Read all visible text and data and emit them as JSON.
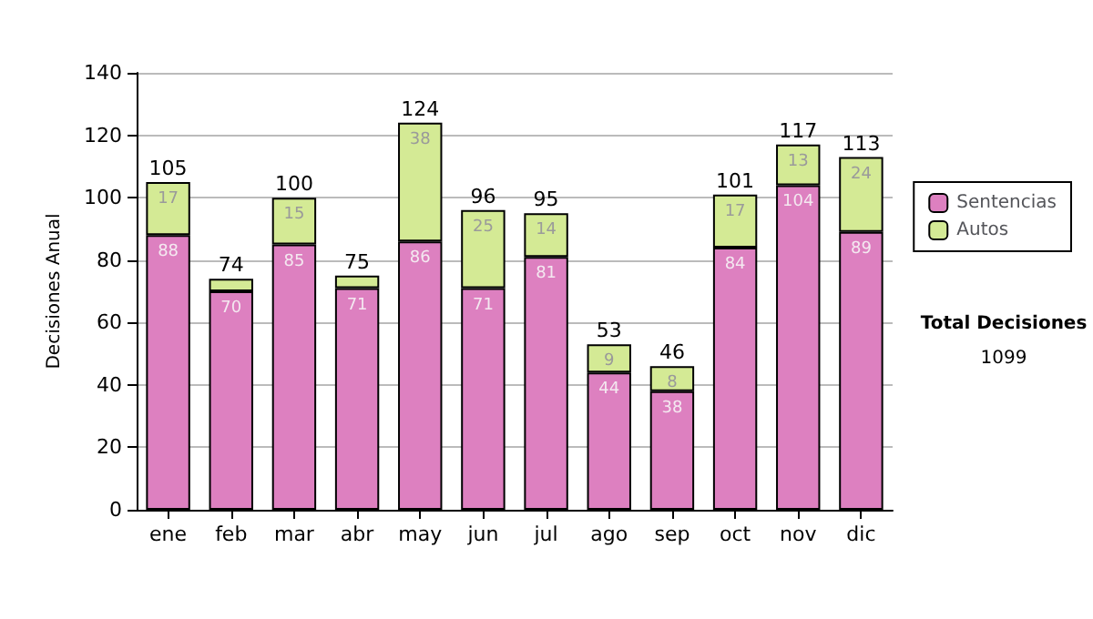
{
  "chart_data": {
    "type": "bar",
    "ylabel": "Decisiones Anual",
    "categories": [
      "ene",
      "feb",
      "mar",
      "abr",
      "may",
      "jun",
      "jul",
      "ago",
      "sep",
      "oct",
      "nov",
      "dic"
    ],
    "series": [
      {
        "name": "Sentencias",
        "color": "#dd80c0",
        "values": [
          88,
          70,
          85,
          71,
          86,
          71,
          81,
          44,
          38,
          84,
          104,
          89
        ],
        "value_labels": [
          "88",
          "70",
          "85",
          "71",
          "86",
          "71",
          "81",
          "44",
          "38",
          "84",
          "104",
          "89"
        ]
      },
      {
        "name": "Autos",
        "color": "#d4ea95",
        "values": [
          17,
          4,
          15,
          4,
          38,
          25,
          14,
          9,
          8,
          17,
          13,
          24
        ],
        "value_labels": [
          "17",
          null,
          "15",
          null,
          "38",
          "25",
          "14",
          "9",
          "8",
          "17",
          "13",
          "24"
        ]
      }
    ],
    "stacked": true,
    "totals": [
      "105",
      "74",
      "100",
      "75",
      "124",
      "96",
      "95",
      "53",
      "46",
      "101",
      "117",
      "113"
    ],
    "ylim": [
      0,
      140
    ],
    "yticks": [
      0,
      20,
      40,
      60,
      80,
      100,
      120,
      140
    ],
    "grid": "y",
    "legend": "right",
    "annotations": [
      "Total Decisiones",
      "1099"
    ]
  }
}
